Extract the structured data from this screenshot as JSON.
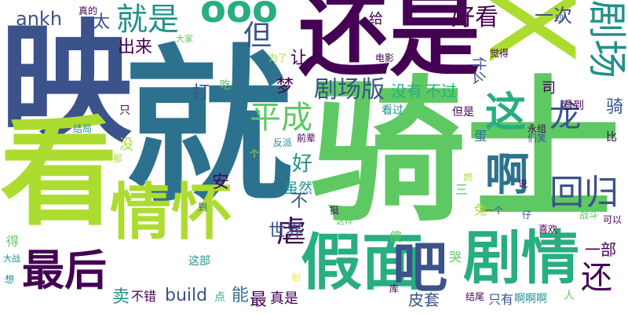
{
  "palette": {
    "dark_purple": "#440154",
    "indigo": "#3b528b",
    "teal_blue": "#2c728e",
    "teal": "#21918c",
    "green_teal": "#28ae80",
    "green": "#5ec962",
    "lime": "#addc30",
    "yellow": "#fde725"
  },
  "words": [
    {
      "text": "骑士",
      "color": "#5ec962"
    },
    {
      "text": "就",
      "color": "#2c728e"
    },
    {
      "text": "映",
      "color": "#3b528b"
    },
    {
      "text": "看",
      "color": "#addc30"
    },
    {
      "text": "还是",
      "color": "#440154"
    },
    {
      "text": "X",
      "color": "#addc30"
    },
    {
      "text": "情怀",
      "color": "#addc30"
    },
    {
      "text": "假面",
      "color": "#28ae80"
    },
    {
      "text": "剧情",
      "color": "#28ae80"
    },
    {
      "text": "最后",
      "color": "#440154"
    },
    {
      "text": "吧",
      "color": "#3b528b"
    },
    {
      "text": "就是",
      "color": "#21918c"
    },
    {
      "text": "剧场",
      "color": "#21918c"
    },
    {
      "text": "ooo",
      "color": "#28ae80"
    },
    {
      "text": "啊",
      "color": "#2c728e"
    },
    {
      "text": "回归",
      "color": "#3b528b"
    },
    {
      "text": "这",
      "color": "#28ae80"
    },
    {
      "text": "平成",
      "color": "#5ec962"
    },
    {
      "text": "龙",
      "color": "#3b528b"
    },
    {
      "text": "剧场版",
      "color": "#3b528b"
    },
    {
      "text": "还",
      "color": "#440154"
    },
    {
      "text": "ankh",
      "color": "#3b528b"
    },
    {
      "text": "但",
      "color": "#3b528b"
    },
    {
      "text": "好看",
      "color": "#440154"
    },
    {
      "text": "太",
      "color": "#3b528b"
    },
    {
      "text": "出来",
      "color": "#440154"
    },
    {
      "text": "一次",
      "color": "#3b528b"
    },
    {
      "text": "虐",
      "color": "#440154"
    },
    {
      "text": "世界",
      "color": "#3b528b"
    },
    {
      "text": "build",
      "color": "#3b528b"
    },
    {
      "text": "一部",
      "color": "#440154"
    },
    {
      "text": "没有",
      "color": "#28ae80"
    },
    {
      "text": "不过",
      "color": "#28ae80"
    },
    {
      "text": "好",
      "color": "#21918c"
    },
    {
      "text": "打",
      "color": "#3b528b"
    },
    {
      "text": "给",
      "color": "#440154"
    },
    {
      "text": "让",
      "color": "#440154"
    },
    {
      "text": "梦",
      "color": "#440154"
    },
    {
      "text": "安",
      "color": "#440154"
    },
    {
      "text": "虽然",
      "color": "#21918c"
    },
    {
      "text": "不",
      "color": "#3b528b"
    },
    {
      "text": "能",
      "color": "#2c728e"
    },
    {
      "text": "最",
      "color": "#440154"
    },
    {
      "text": "真是",
      "color": "#440154"
    },
    {
      "text": "皮套",
      "color": "#3b528b"
    },
    {
      "text": "卖",
      "color": "#21918c"
    },
    {
      "text": "不错",
      "color": "#440154"
    },
    {
      "text": "只有",
      "color": "#3b528b"
    },
    {
      "text": "啊啊啊",
      "color": "#21918c"
    },
    {
      "text": "骑",
      "color": "#3b528b"
    },
    {
      "text": "但是",
      "color": "#440154"
    },
    {
      "text": "看到",
      "color": "#440154"
    },
    {
      "text": "看过",
      "color": "#21918c"
    },
    {
      "text": "什么",
      "color": "#3b528b"
    },
    {
      "text": "司",
      "color": "#440154"
    },
    {
      "text": "蛋",
      "color": "#2c728e"
    },
    {
      "text": "比",
      "color": "#440154"
    },
    {
      "text": "只",
      "color": "#440154"
    },
    {
      "text": "没",
      "color": "#addc30"
    },
    {
      "text": "三",
      "color": "#5ec962"
    },
    {
      "text": "兔",
      "color": "#addc30"
    },
    {
      "text": "傻",
      "color": "#5ec962"
    },
    {
      "text": "哭",
      "color": "#5ec962"
    },
    {
      "text": "得",
      "color": "#5ec962"
    },
    {
      "text": "这部",
      "color": "#21918c"
    },
    {
      "text": "点",
      "color": "#28ae80"
    },
    {
      "text": "吃",
      "color": "#5ec962"
    },
    {
      "text": "为了",
      "color": "#addc30"
    },
    {
      "text": "电影",
      "color": "#440154"
    },
    {
      "text": "觉得",
      "color": "#440154"
    },
    {
      "text": "真的",
      "color": "#440154"
    },
    {
      "text": "大家",
      "color": "#5ec962"
    },
    {
      "text": "四",
      "color": "#3b528b"
    },
    {
      "text": "结局",
      "color": "#21918c"
    },
    {
      "text": "那",
      "color": "#addc30"
    },
    {
      "text": "反派",
      "color": "#21918c"
    },
    {
      "text": "前辈",
      "color": "#440154"
    },
    {
      "text": "个",
      "color": "#addc30"
    },
    {
      "text": "永组",
      "color": "#440154"
    },
    {
      "text": "们笑",
      "color": "#3b528b"
    },
    {
      "text": "小",
      "color": "#5ec962"
    },
    {
      "text": "燃",
      "color": "#addc30"
    },
    {
      "text": "说",
      "color": "#440154"
    },
    {
      "text": "一个",
      "color": "#3b528b"
    },
    {
      "text": "仔",
      "color": "#3b528b"
    },
    {
      "text": "战斗",
      "color": "#5ec962"
    },
    {
      "text": "可以",
      "color": "#440154"
    },
    {
      "text": "挺",
      "color": "#440154"
    },
    {
      "text": "这样",
      "color": "#5ec962"
    },
    {
      "text": "到",
      "color": "#3b528b"
    },
    {
      "text": "大战",
      "color": "#21918c"
    },
    {
      "text": "想",
      "color": "#21918c"
    },
    {
      "text": "剧",
      "color": "#fde725"
    },
    {
      "text": "喜欢",
      "color": "#440154"
    },
    {
      "text": "库",
      "color": "#440154"
    },
    {
      "text": "结尾",
      "color": "#440154"
    },
    {
      "text": "人",
      "color": "#5ec962"
    }
  ]
}
